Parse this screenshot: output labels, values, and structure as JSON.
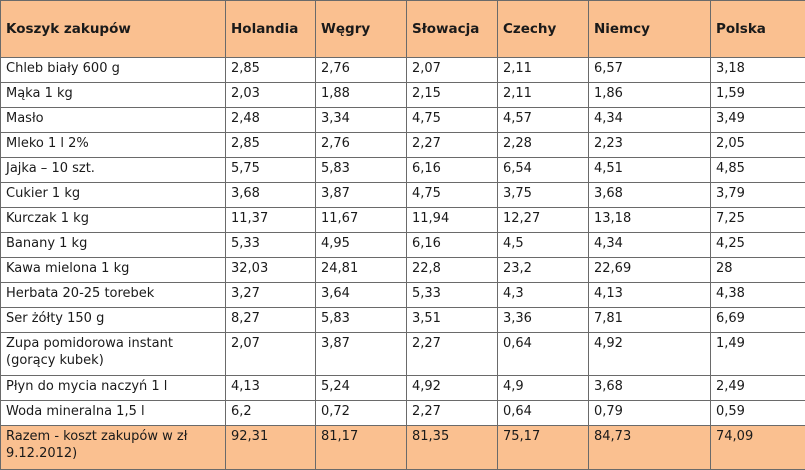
{
  "table": {
    "headers": [
      "Koszyk zakupów",
      "Holandia",
      "Węgry",
      "Słowacja",
      "Czechy",
      "Niemcy",
      "Polska"
    ],
    "rows": [
      [
        "Chleb biały 600 g",
        "2,85",
        "2,76",
        "2,07",
        "2,11",
        "6,57",
        "3,18"
      ],
      [
        "Mąka 1 kg",
        "2,03",
        "1,88",
        "2,15",
        "2,11",
        "1,86",
        "1,59"
      ],
      [
        "Masło",
        "2,48",
        "3,34",
        "4,75",
        "4,57",
        "4,34",
        "3,49"
      ],
      [
        "Mleko 1 l 2%",
        "2,85",
        "2,76",
        "2,27",
        "2,28",
        "2,23",
        "2,05"
      ],
      [
        "Jajka – 10 szt.",
        "5,75",
        "5,83",
        "6,16",
        "6,54",
        "4,51",
        "4,85"
      ],
      [
        "Cukier 1 kg",
        "3,68",
        "3,87",
        "4,75",
        "3,75",
        "3,68",
        "3,79"
      ],
      [
        "Kurczak 1 kg",
        "11,37",
        "11,67",
        "11,94",
        "12,27",
        "13,18",
        "7,25"
      ],
      [
        "Banany 1 kg",
        "5,33",
        "4,95",
        "6,16",
        "4,5",
        "4,34",
        "4,25"
      ],
      [
        "Kawa mielona 1 kg",
        "32,03",
        "24,81",
        "22,8",
        "23,2",
        "22,69",
        "28"
      ],
      [
        "Herbata 20-25 torebek",
        "3,27",
        "3,64",
        "5,33",
        "4,3",
        "4,13",
        "4,38"
      ],
      [
        "Ser żółty 150 g",
        "8,27",
        "5,83",
        "3,51",
        "3,36",
        "7,81",
        "6,69"
      ],
      [
        "Zupa pomidorowa instant (gorący kubek)",
        "2,07",
        "3,87",
        "2,27",
        "0,64",
        "4,92",
        "1,49"
      ],
      [
        "Płyn do mycia naczyń 1 l",
        "4,13",
        "5,24",
        "4,92",
        "4,9",
        "3,68",
        "2,49"
      ],
      [
        "Woda mineralna  1,5 l",
        "6,2",
        "0,72",
        "2,27",
        "0,64",
        "0,79",
        "0,59"
      ]
    ],
    "total": [
      "Razem - koszt zakupów w zł 9.12.2012)",
      "92,31",
      "81,17",
      "81,35",
      "75,17",
      "84,73",
      "74,09"
    ]
  }
}
